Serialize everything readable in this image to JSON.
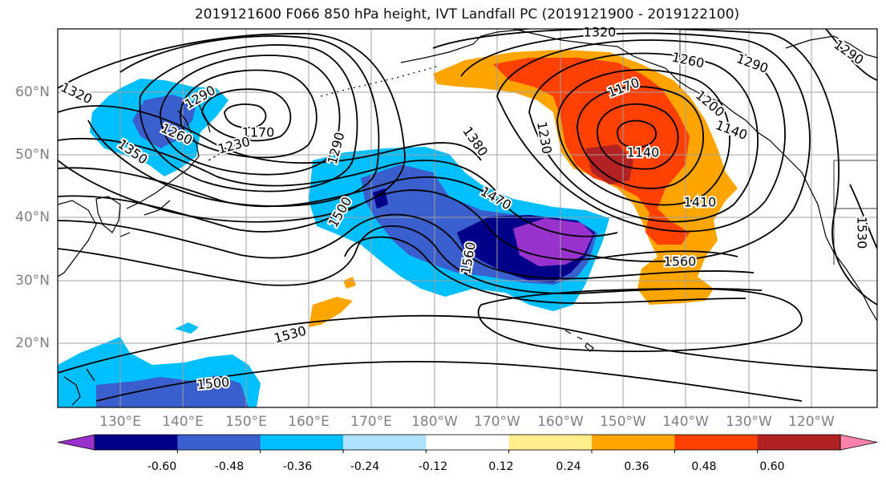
{
  "title": "2019121600 F066 850 hPa height, IVT Landfall PC (2019121900 - 2019122100)",
  "lat_labels": [
    "60°N",
    "50°N",
    "40°N",
    "30°N",
    "20°N"
  ],
  "lon_labels": [
    "130°E",
    "140°E",
    "150°E",
    "160°E",
    "170°E",
    "180°W",
    "170°W",
    "160°W",
    "150°W",
    "140°W",
    "130°W",
    "120°W"
  ],
  "colorbar": {
    "colors": [
      "#9932cc",
      "#00008b",
      "#3a5fcd",
      "#00bfff",
      "#b0e2ff",
      "#ffffff",
      "#ffec8b",
      "#ffa500",
      "#ff4000",
      "#b22222",
      "#ff82ab"
    ],
    "tick_labels": [
      "-0.60",
      "-0.48",
      "-0.36",
      "-0.24",
      "-0.12",
      "0.12",
      "0.24",
      "0.36",
      "0.48",
      "0.60"
    ]
  },
  "contour_labels": [
    {
      "text": "1320",
      "rot": 0
    },
    {
      "text": "1260",
      "rot": 12
    },
    {
      "text": "1290",
      "rot": 20
    },
    {
      "text": "1290",
      "rot": 35
    },
    {
      "text": "1320",
      "rot": 25
    },
    {
      "text": "1290",
      "rot": -30
    },
    {
      "text": "1260",
      "rot": 25
    },
    {
      "text": "1350",
      "rot": 35
    },
    {
      "text": "1170",
      "rot": 0
    },
    {
      "text": "1230",
      "rot": -15
    },
    {
      "text": "1290",
      "rot": -75
    },
    {
      "text": "1380",
      "rot": 55
    },
    {
      "text": "1230",
      "rot": 80
    },
    {
      "text": "1170",
      "rot": -20
    },
    {
      "text": "1200",
      "rot": 40
    },
    {
      "text": "1140",
      "rot": 0
    },
    {
      "text": "1140",
      "rot": 20
    },
    {
      "text": "1470",
      "rot": 30
    },
    {
      "text": "1500",
      "rot": -60
    },
    {
      "text": "1410",
      "rot": 0
    },
    {
      "text": "1560",
      "rot": -80
    },
    {
      "text": "1560",
      "rot": 0
    },
    {
      "text": "1530",
      "rot": 90
    },
    {
      "text": "1530",
      "rot": -15
    },
    {
      "text": "1500",
      "rot": -5
    }
  ],
  "colors": {
    "contour": "#000000",
    "coast": "#000000",
    "grid": "#a0a0a0",
    "axis_text": "#808080"
  }
}
